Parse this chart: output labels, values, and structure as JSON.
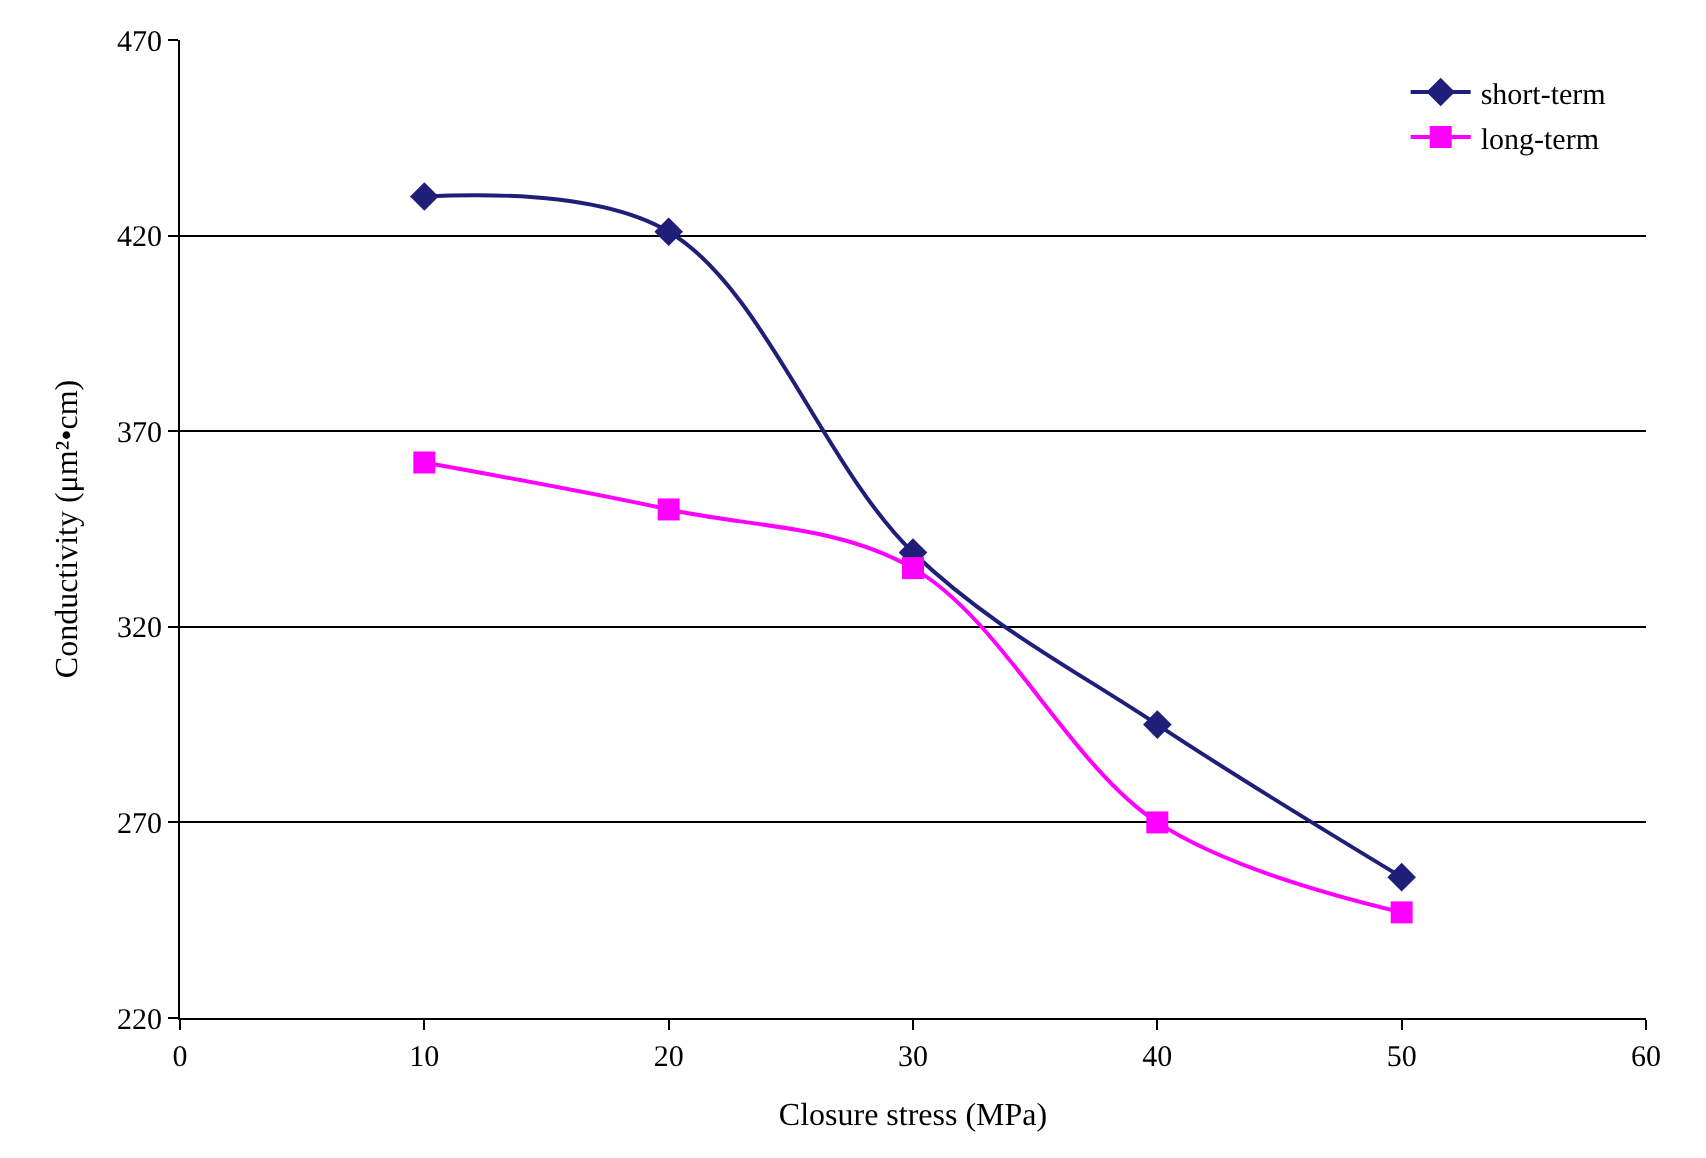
{
  "chart_data": {
    "type": "line",
    "xlabel": "Closure stress (MPa)",
    "ylabel": "Conductivity (μm²•cm)",
    "x": [
      10,
      20,
      30,
      40,
      50
    ],
    "series": [
      {
        "name": "short-term",
        "color": "#1f1f7a",
        "marker": "diamond",
        "values": [
          430,
          421,
          339,
          295,
          256
        ]
      },
      {
        "name": "long-term",
        "color": "#ff00ff",
        "marker": "square",
        "values": [
          362,
          350,
          335,
          270,
          247
        ]
      }
    ],
    "xlim": [
      0,
      60
    ],
    "xticks": [
      0,
      10,
      20,
      30,
      40,
      50,
      60
    ],
    "ylim": [
      220,
      470
    ],
    "yticks": [
      220,
      270,
      320,
      370,
      420,
      470
    ],
    "grid": "y",
    "legend": "top right",
    "line_style": "solid"
  }
}
